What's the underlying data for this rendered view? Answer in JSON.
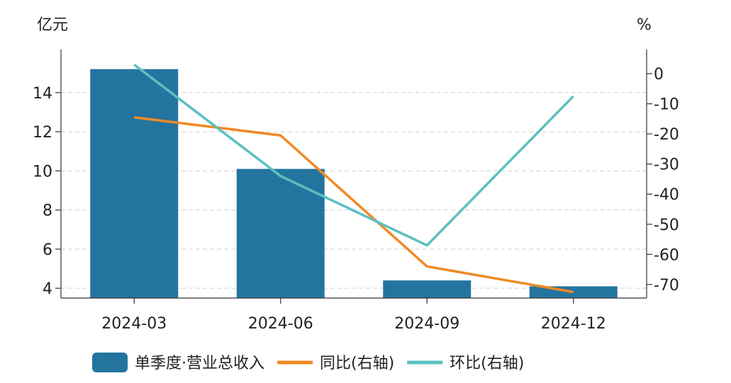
{
  "chart_data": {
    "type": "bar",
    "categories": [
      "2024-03",
      "2024-06",
      "2024-09",
      "2024-12"
    ],
    "left_axis": {
      "unit": "亿元",
      "ticks": [
        4,
        6,
        8,
        10,
        12,
        14
      ],
      "range": [
        3.5,
        16.2
      ]
    },
    "right_axis": {
      "unit": "%",
      "ticks": [
        0,
        -10,
        -20,
        -30,
        -40,
        -50,
        -60,
        -70
      ],
      "range": [
        -74.5,
        8
      ]
    },
    "series": [
      {
        "name": "单季度·营业总收入",
        "type": "bar",
        "axis": "left",
        "color": "#23759F",
        "values": [
          15.2,
          10.1,
          4.4,
          4.1
        ]
      },
      {
        "name": "同比(右轴)",
        "type": "line",
        "axis": "right",
        "color": "#F08A24",
        "values": [
          -14.5,
          -20.5,
          -64,
          -72.5
        ]
      },
      {
        "name": "环比(右轴)",
        "type": "line",
        "axis": "right",
        "color": "#5BC0C0",
        "values": [
          3,
          -34,
          -57,
          -7.5
        ]
      }
    ],
    "grid": true,
    "legend": "bottom"
  }
}
